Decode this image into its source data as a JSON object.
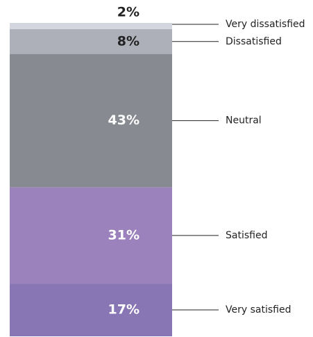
{
  "chart_data": {
    "type": "stacked_bar",
    "categories": [
      "Very dissatisfied",
      "Dissatisfied",
      "Neutral",
      "Satisfied",
      "Very satisfied"
    ],
    "values": [
      2,
      8,
      43,
      31,
      17
    ],
    "value_labels": [
      "2%",
      "8%",
      "43%",
      "31%",
      "17%"
    ],
    "colors": [
      "#d3d6de",
      "#adb0b8",
      "#878a90",
      "#9c82bc",
      "#8875b3"
    ],
    "label_colors": [
      "#222222",
      "#222222",
      "#ffffff",
      "#ffffff",
      "#ffffff"
    ]
  }
}
